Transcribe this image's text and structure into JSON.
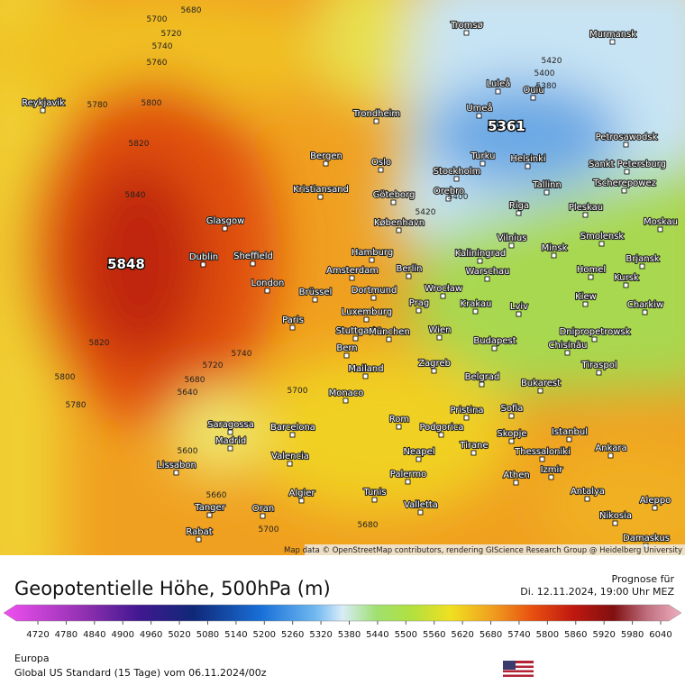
{
  "header": {
    "title": "Geopotentielle Höhe, 500hPa (m)",
    "forecast_label": "Prognose für",
    "forecast_time": "Di. 12.11.2024, 19:00 Uhr MEZ"
  },
  "map": {
    "attribution": "Map data © OpenStreetMap contributors, rendering GIScience Research Group @ Heidelberg University",
    "cities": [
      "Tromsø",
      "Murmansk",
      "Reykjavik",
      "Luleå",
      "Oulu",
      "Trondheim",
      "Umeå",
      "Petrosawodsk",
      "Bergen",
      "Oslo",
      "Turku",
      "Helsinki",
      "Sankt Petersburg",
      "Stockholm",
      "Kristiansand",
      "Göteborg",
      "Orebro",
      "Tallinn",
      "Tscherepowez",
      "Riga",
      "Pleskau",
      "Glasgow",
      "København",
      "Moskau",
      "Vilnius",
      "Smolensk",
      "Hamburg",
      "Kaliningrad",
      "Minsk",
      "Dublin",
      "Sheffield",
      "Brjansk",
      "Amsterdam",
      "Berlin",
      "Warschau",
      "Homel",
      "Kursk",
      "London",
      "Brüssel",
      "Dortmund",
      "Wrocław",
      "Kiew",
      "Krakau",
      "Lviv",
      "Charkiw",
      "Luxemburg",
      "Prag",
      "Paris",
      "Stuttgart",
      "München",
      "Wien",
      "Dnipropetrowsk",
      "Chisinău",
      "Budapest",
      "Bern",
      "Tiraspol",
      "Mailand",
      "Zagreb",
      "Belgrad",
      "Bukarest",
      "Monaco",
      "Pristina",
      "Sofia",
      "Rom",
      "Podgorica",
      "Saragossa",
      "Barcelona",
      "Istanbul",
      "Skopje",
      "Madrid",
      "Tirane",
      "Ankara",
      "Neapel",
      "Thessaloniki",
      "Valencia",
      "Lissabon",
      "Izmir",
      "Athen",
      "Palermo",
      "Algier",
      "Tunis",
      "Antalya",
      "Valletta",
      "Aleppo",
      "Tanger",
      "Oran",
      "Nikosia",
      "Rabat",
      "Damaskus"
    ],
    "contour_labels": [
      5700,
      5680,
      5720,
      5740,
      5760,
      5780,
      5800,
      5820,
      5840,
      5820,
      5800,
      5780,
      5720,
      5740,
      5700,
      5680,
      5640,
      5600,
      5660,
      5700,
      5680,
      5420,
      5400,
      5380,
      5420,
      5400
    ],
    "extrema": [
      5848,
      5361
    ]
  },
  "legend": {
    "ticks": [
      4720,
      4780,
      4840,
      4900,
      4960,
      5020,
      5080,
      5140,
      5200,
      5260,
      5320,
      5380,
      5440,
      5500,
      5560,
      5620,
      5680,
      5740,
      5800,
      5860,
      5920,
      5980,
      6040
    ]
  },
  "footer": {
    "region": "Europa",
    "model": "Global US Standard (15 Tage)  vom  06.11.2024/00z"
  }
}
